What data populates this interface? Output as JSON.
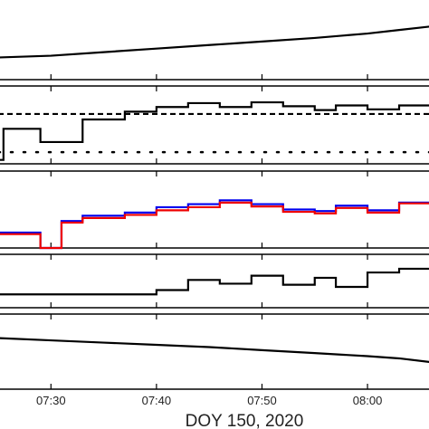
{
  "chart_data": {
    "type": "line",
    "layout": "stacked panels sharing a time axis",
    "xlabel": "DOY 150, 2020",
    "x_unit": "UT time of day",
    "xlim": [
      "07:25",
      "08:06"
    ],
    "x_ticks": [
      "07:30",
      "07:40",
      "07:50",
      "08:00"
    ],
    "colors": {
      "black": "#000000",
      "blue": "#0000ee",
      "red": "#ee0000"
    },
    "panels": [
      {
        "name": "panel-1",
        "ylim": [
          0,
          1
        ],
        "series": [
          {
            "color": "black",
            "style": "solid",
            "step": false,
            "x": [
              "07:25",
              "07:30",
              "07:35",
              "07:40",
              "07:45",
              "07:50",
              "07:55",
              "08:00",
              "08:03",
              "08:06"
            ],
            "y": [
              0.25,
              0.27,
              0.31,
              0.35,
              0.39,
              0.43,
              0.47,
              0.52,
              0.56,
              0.6
            ]
          }
        ]
      },
      {
        "name": "panel-2",
        "ylim": [
          0,
          1
        ],
        "series": [
          {
            "color": "black",
            "style": "solid",
            "step": true,
            "x": [
              "07:25",
              "07:25:30",
              "07:27",
              "07:29",
              "07:31",
              "07:33",
              "07:37",
              "07:40",
              "07:43",
              "07:46",
              "07:49",
              "07:52",
              "07:55",
              "07:57",
              "08:00",
              "08:03",
              "08:06"
            ],
            "y": [
              0.05,
              0.45,
              0.45,
              0.28,
              0.28,
              0.57,
              0.67,
              0.73,
              0.78,
              0.73,
              0.79,
              0.74,
              0.69,
              0.75,
              0.7,
              0.75,
              0.75
            ]
          },
          {
            "color": "black",
            "style": "dashed",
            "step": false,
            "x": [
              "07:25",
              "08:06"
            ],
            "y": [
              0.64,
              0.64
            ]
          },
          {
            "color": "black",
            "style": "dotted",
            "step": false,
            "x": [
              "07:25",
              "08:06"
            ],
            "y": [
              0.15,
              0.15
            ]
          }
        ]
      },
      {
        "name": "panel-3",
        "ylim": [
          0,
          1
        ],
        "series": [
          {
            "color": "blue",
            "style": "solid",
            "step": true,
            "x": [
              "07:25",
              "07:27",
              "07:29",
              "07:31",
              "07:33",
              "07:37",
              "07:40",
              "07:43",
              "07:46",
              "07:49",
              "07:52",
              "07:55",
              "07:57",
              "08:00",
              "08:03",
              "08:06"
            ],
            "y": [
              0.2,
              0.2,
              0.0,
              0.35,
              0.42,
              0.46,
              0.53,
              0.57,
              0.62,
              0.57,
              0.5,
              0.48,
              0.55,
              0.49,
              0.59,
              0.59
            ]
          },
          {
            "color": "red",
            "style": "solid",
            "step": true,
            "x": [
              "07:25",
              "07:27",
              "07:29",
              "07:31",
              "07:33",
              "07:37",
              "07:40",
              "07:43",
              "07:46",
              "07:49",
              "07:52",
              "07:55",
              "07:57",
              "08:00",
              "08:03",
              "08:06"
            ],
            "y": [
              0.18,
              0.18,
              0.0,
              0.33,
              0.39,
              0.43,
              0.49,
              0.53,
              0.59,
              0.54,
              0.47,
              0.45,
              0.52,
              0.46,
              0.58,
              0.58
            ]
          }
        ]
      },
      {
        "name": "panel-4",
        "ylim": [
          0,
          1
        ],
        "series": [
          {
            "color": "black",
            "style": "solid",
            "step": true,
            "x": [
              "07:25",
              "07:40",
              "07:43",
              "07:46",
              "07:49",
              "07:52",
              "07:55",
              "07:57",
              "08:00",
              "08:03",
              "08:06"
            ],
            "y": [
              0.25,
              0.33,
              0.52,
              0.45,
              0.6,
              0.43,
              0.56,
              0.39,
              0.66,
              0.73,
              0.73
            ]
          }
        ]
      },
      {
        "name": "panel-5",
        "ylim": [
          0,
          1
        ],
        "series": [
          {
            "color": "black",
            "style": "solid",
            "step": false,
            "x": [
              "07:25",
              "07:30",
              "07:35",
              "07:40",
              "07:45",
              "07:50",
              "07:55",
              "08:00",
              "08:03",
              "08:06"
            ],
            "y": [
              0.68,
              0.65,
              0.62,
              0.59,
              0.56,
              0.52,
              0.48,
              0.44,
              0.41,
              0.36
            ]
          }
        ]
      }
    ],
    "grid": false,
    "legend": "none"
  }
}
